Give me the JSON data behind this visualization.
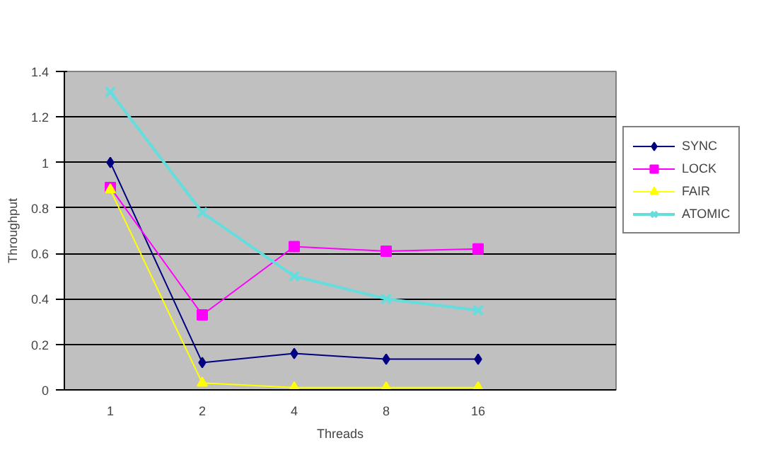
{
  "chart_data": {
    "type": "line",
    "xlabel": "Threads",
    "ylabel": "Throughput",
    "categories": [
      "1",
      "2",
      "4",
      "8",
      "16",
      null
    ],
    "ylim": [
      0,
      1.4
    ],
    "yticks": [
      0,
      0.2,
      0.4,
      0.6,
      0.8,
      1,
      1.2,
      1.4
    ],
    "grid": "y",
    "legend": "right",
    "series": [
      {
        "name": "SYNC",
        "color": "#000080",
        "marker": "diamond",
        "values": [
          1.0,
          0.12,
          0.16,
          0.135,
          0.135,
          null
        ]
      },
      {
        "name": "LOCK",
        "color": "#ff00ff",
        "marker": "square",
        "values": [
          0.89,
          0.33,
          0.63,
          0.61,
          0.62,
          null
        ]
      },
      {
        "name": "FAIR",
        "color": "#ffff00",
        "marker": "triangle",
        "values": [
          0.88,
          0.03,
          0.01,
          0.01,
          0.01,
          null
        ]
      },
      {
        "name": "ATOMIC",
        "color": "#66dddd",
        "marker": "cross",
        "values": [
          1.31,
          0.78,
          0.5,
          0.4,
          0.35,
          null
        ]
      }
    ]
  }
}
